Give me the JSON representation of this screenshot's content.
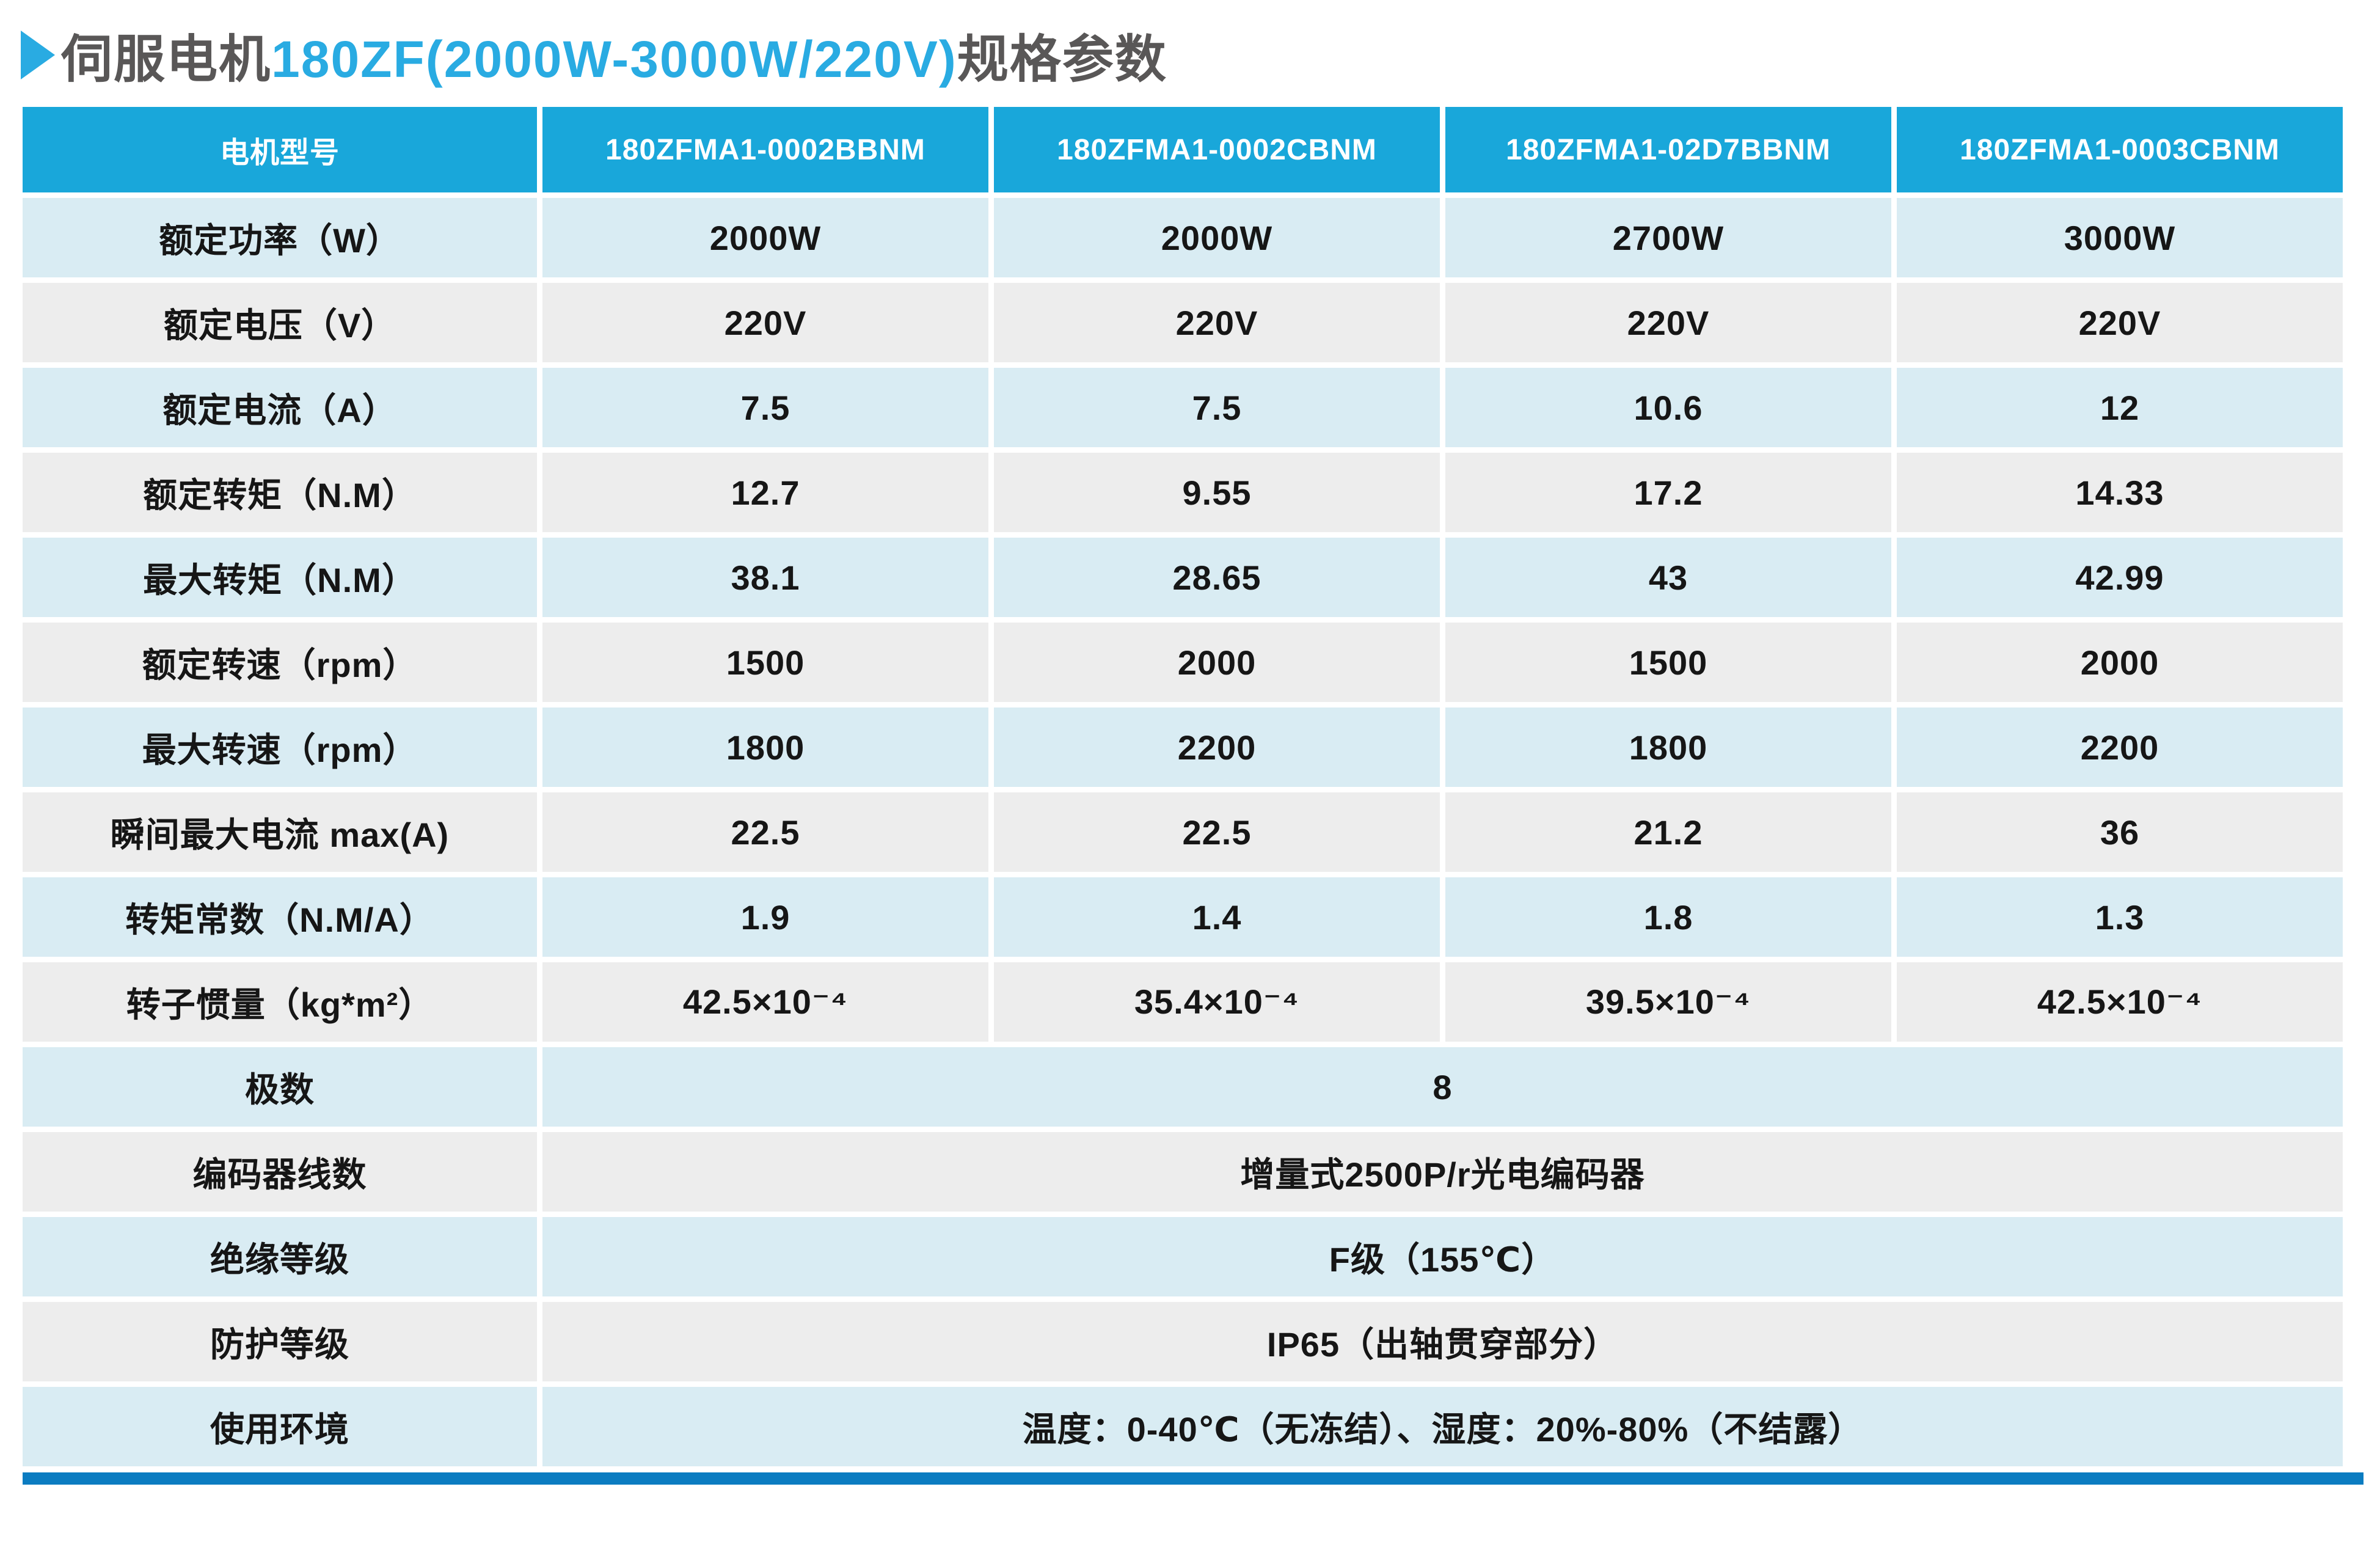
{
  "title": {
    "prefix": "伺服电机",
    "model": "180ZF(2000W-3000W/220V)",
    "suffix": "规格参数"
  },
  "colors": {
    "accent_cyan": "#29ABE2",
    "title_gray": "#595757",
    "header_blue": "#19A7DA",
    "row_light_blue": "#D9ECF3",
    "row_light_gray": "#EDEDED",
    "bottom_bar_blue": "#0B7CC1",
    "header_text": "#FFFFFF",
    "cell_text": "#161616"
  },
  "table": {
    "header_label": "电机型号",
    "models": [
      "180ZFMA1-0002BBNM",
      "180ZFMA1-0002CBNM",
      "180ZFMA1-02D7BBNM",
      "180ZFMA1-0003CBNM"
    ],
    "rows": [
      {
        "label": "额定功率（W）",
        "values": [
          "2000W",
          "2000W",
          "2700W",
          "3000W"
        ]
      },
      {
        "label": "额定电压（V）",
        "values": [
          "220V",
          "220V",
          "220V",
          "220V"
        ]
      },
      {
        "label": "额定电流（A）",
        "values": [
          "7.5",
          "7.5",
          "10.6",
          "12"
        ]
      },
      {
        "label": "额定转矩（N.M）",
        "values": [
          "12.7",
          "9.55",
          "17.2",
          "14.33"
        ]
      },
      {
        "label": "最大转矩（N.M）",
        "values": [
          "38.1",
          "28.65",
          "43",
          "42.99"
        ]
      },
      {
        "label": "额定转速（rpm）",
        "values": [
          "1500",
          "2000",
          "1500",
          "2000"
        ]
      },
      {
        "label": "最大转速（rpm）",
        "values": [
          "1800",
          "2200",
          "1800",
          "2200"
        ]
      },
      {
        "label": "瞬间最大电流 max(A)",
        "values": [
          "22.5",
          "22.5",
          "21.2",
          "36"
        ]
      },
      {
        "label": "转矩常数（N.M/A）",
        "values": [
          "1.9",
          "1.4",
          "1.8",
          "1.3"
        ]
      },
      {
        "label": "转子惯量（kg*m²）",
        "values": [
          "42.5×10⁻⁴",
          "35.4×10⁻⁴",
          "39.5×10⁻⁴",
          "42.5×10⁻⁴"
        ]
      }
    ],
    "merged_rows": [
      {
        "label": "极数",
        "value": "8"
      },
      {
        "label": "编码器线数",
        "value": "增量式2500P/r光电编码器"
      },
      {
        "label": "绝缘等级",
        "value": "F级（155℃）"
      },
      {
        "label": "防护等级",
        "value": "IP65（出轴贯穿部分）"
      },
      {
        "label": "使用环境",
        "value": "温度：0-40℃（无冻结）、湿度：20%-80%（不结露）"
      }
    ]
  }
}
